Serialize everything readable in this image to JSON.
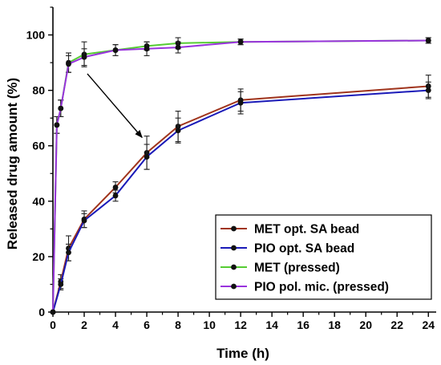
{
  "chart_data": {
    "type": "line",
    "xlabel": "Time (h)",
    "ylabel": "Released drug amount (%)",
    "xlim": [
      0,
      24.5
    ],
    "ylim": [
      0,
      110
    ],
    "x_ticks": [
      0,
      2,
      4,
      6,
      8,
      10,
      12,
      14,
      16,
      18,
      20,
      22,
      24
    ],
    "y_ticks": [
      0,
      20,
      40,
      60,
      80,
      100
    ],
    "grid": false,
    "legend_position": "bottom-right",
    "series": [
      {
        "name": "MET opt. SA bead",
        "color": "#a0341c",
        "x": [
          0,
          0.5,
          1,
          2,
          4,
          6,
          8,
          12,
          24
        ],
        "y": [
          0,
          11,
          23,
          33.5,
          45,
          57.5,
          67,
          76.5,
          81.5
        ],
        "err": [
          0,
          2.5,
          4.5,
          3,
          2,
          6,
          5.5,
          4,
          4
        ]
      },
      {
        "name": "PIO opt. SA bead",
        "color": "#1a1ab8",
        "x": [
          0,
          0.5,
          1,
          2,
          4,
          6,
          8,
          12,
          24
        ],
        "y": [
          0,
          10,
          21.5,
          33,
          42,
          56,
          65.5,
          75.5,
          80
        ],
        "err": [
          0,
          2,
          3,
          2.5,
          2,
          4.5,
          4.5,
          4,
          3
        ]
      },
      {
        "name": "MET (pressed)",
        "color": "#55cc33",
        "x": [
          0,
          0.25,
          0.5,
          1,
          2,
          4,
          6,
          8,
          12,
          24
        ],
        "y": [
          0,
          67.5,
          73.5,
          90,
          93,
          94.5,
          96,
          97,
          97.5,
          98
        ],
        "err": [
          0,
          3,
          3,
          3.5,
          4.5,
          2,
          1.5,
          2,
          1,
          1
        ]
      },
      {
        "name": "PIO pol. mic. (pressed)",
        "color": "#9933dd",
        "x": [
          0,
          0.25,
          0.5,
          1,
          2,
          4,
          6,
          8,
          12,
          24
        ],
        "y": [
          0,
          67.5,
          73.5,
          89.5,
          92,
          94.5,
          95,
          95.5,
          97.5,
          98
        ],
        "err": [
          0,
          3,
          3,
          3,
          3,
          2,
          2.5,
          2,
          1,
          1
        ]
      }
    ]
  }
}
